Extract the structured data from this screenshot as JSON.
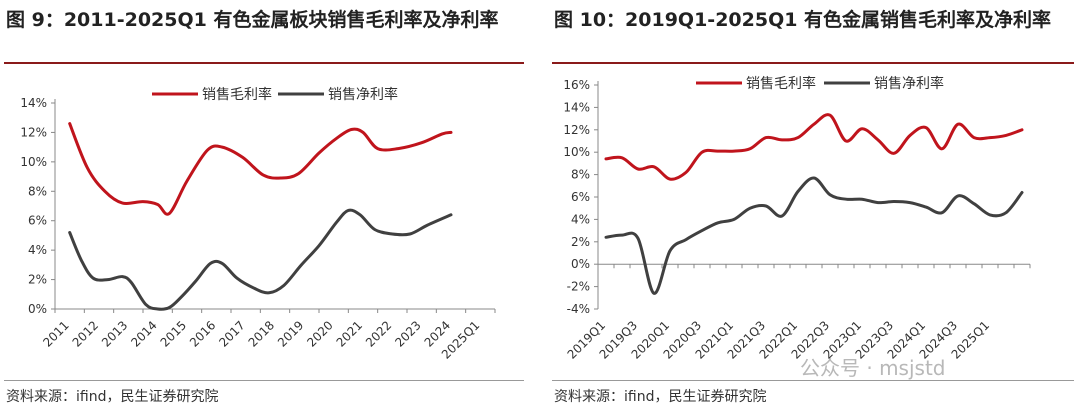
{
  "charts": [
    {
      "title": "图 9：2011-2025Q1 有色金属板块销售毛利率及净利率",
      "source": "资料来源：ifind，民生证券研究院"
    },
    {
      "title": "图 10：2019Q1-2025Q1 有色金属销售毛利率及净利率",
      "source": "资料来源：ifind，民生证券研究院"
    }
  ],
  "watermark": "公众号 · msjstd",
  "colors": {
    "gross": "#c0141c",
    "net": "#404040"
  },
  "chart_data": [
    {
      "type": "line",
      "x_labels": [
        "2011",
        "2012",
        "2013",
        "2014",
        "2015",
        "2016",
        "2017",
        "2018",
        "2019",
        "2020",
        "2021",
        "2022",
        "2023",
        "2024",
        "2025Q1"
      ],
      "ylim": [
        0,
        14
      ],
      "y_ticks": [
        "0%",
        "2%",
        "4%",
        "6%",
        "8%",
        "10%",
        "12%",
        "14%"
      ],
      "grid": false,
      "legend_position": "top",
      "series": [
        {
          "name": "销售毛利率",
          "color": "#c0141c",
          "points": [
            [
              0,
              12.6
            ],
            [
              0.6,
              9.6
            ],
            [
              1.2,
              8.0
            ],
            [
              1.8,
              7.2
            ],
            [
              2.5,
              7.3
            ],
            [
              3.0,
              7.1
            ],
            [
              3.4,
              6.5
            ],
            [
              4.0,
              8.7
            ],
            [
              4.7,
              10.8
            ],
            [
              5.2,
              11.0
            ],
            [
              5.9,
              10.3
            ],
            [
              6.6,
              9.1
            ],
            [
              7.2,
              8.9
            ],
            [
              7.8,
              9.2
            ],
            [
              8.5,
              10.6
            ],
            [
              9.1,
              11.6
            ],
            [
              9.6,
              12.2
            ],
            [
              10.0,
              12.0
            ],
            [
              10.5,
              10.9
            ],
            [
              11.2,
              10.9
            ],
            [
              12.0,
              11.3
            ],
            [
              12.7,
              11.9
            ],
            [
              13.0,
              12.0
            ]
          ]
        },
        {
          "name": "销售净利率",
          "color": "#404040",
          "points": [
            [
              0,
              5.2
            ],
            [
              0.4,
              3.3
            ],
            [
              0.8,
              2.1
            ],
            [
              1.3,
              2.0
            ],
            [
              1.8,
              2.2
            ],
            [
              2.1,
              1.8
            ],
            [
              2.6,
              0.3
            ],
            [
              3.0,
              0.0
            ],
            [
              3.4,
              0.1
            ],
            [
              3.8,
              0.8
            ],
            [
              4.3,
              1.9
            ],
            [
              4.8,
              3.1
            ],
            [
              5.2,
              3.1
            ],
            [
              5.7,
              2.1
            ],
            [
              6.3,
              1.4
            ],
            [
              6.8,
              1.1
            ],
            [
              7.3,
              1.6
            ],
            [
              7.9,
              3.0
            ],
            [
              8.5,
              4.3
            ],
            [
              9.1,
              5.9
            ],
            [
              9.5,
              6.7
            ],
            [
              9.9,
              6.4
            ],
            [
              10.4,
              5.4
            ],
            [
              11.0,
              5.1
            ],
            [
              11.6,
              5.1
            ],
            [
              12.2,
              5.7
            ],
            [
              13.0,
              6.4
            ]
          ]
        }
      ]
    },
    {
      "type": "line",
      "x_labels": [
        "2019Q1",
        "2019Q3",
        "2020Q1",
        "2020Q3",
        "2021Q1",
        "2021Q3",
        "2022Q1",
        "2022Q3",
        "2023Q1",
        "2023Q3",
        "2024Q1",
        "2024Q3",
        "2025Q1"
      ],
      "ylim": [
        -4,
        16
      ],
      "y_ticks": [
        "-4%",
        "-2%",
        "0%",
        "2%",
        "4%",
        "6%",
        "8%",
        "10%",
        "12%",
        "14%",
        "16%"
      ],
      "grid": false,
      "legend_position": "top",
      "series": [
        {
          "name": "销售毛利率",
          "color": "#c0141c",
          "values": [
            9.4,
            9.5,
            8.5,
            8.7,
            7.6,
            8.2,
            10.0,
            10.1,
            10.1,
            10.3,
            11.3,
            11.1,
            11.3,
            12.5,
            13.3,
            11.0,
            12.1,
            11.1,
            9.9,
            11.5,
            12.2,
            10.3,
            12.5,
            11.3,
            11.3,
            11.5,
            12.0
          ]
        },
        {
          "name": "销售净利率",
          "color": "#404040",
          "values": [
            2.4,
            2.6,
            2.3,
            -2.6,
            1.2,
            2.2,
            3.0,
            3.7,
            4.0,
            5.0,
            5.2,
            4.3,
            6.5,
            7.7,
            6.2,
            5.8,
            5.8,
            5.5,
            5.6,
            5.5,
            5.1,
            4.6,
            6.1,
            5.4,
            4.4,
            4.6,
            6.4
          ]
        }
      ]
    }
  ]
}
